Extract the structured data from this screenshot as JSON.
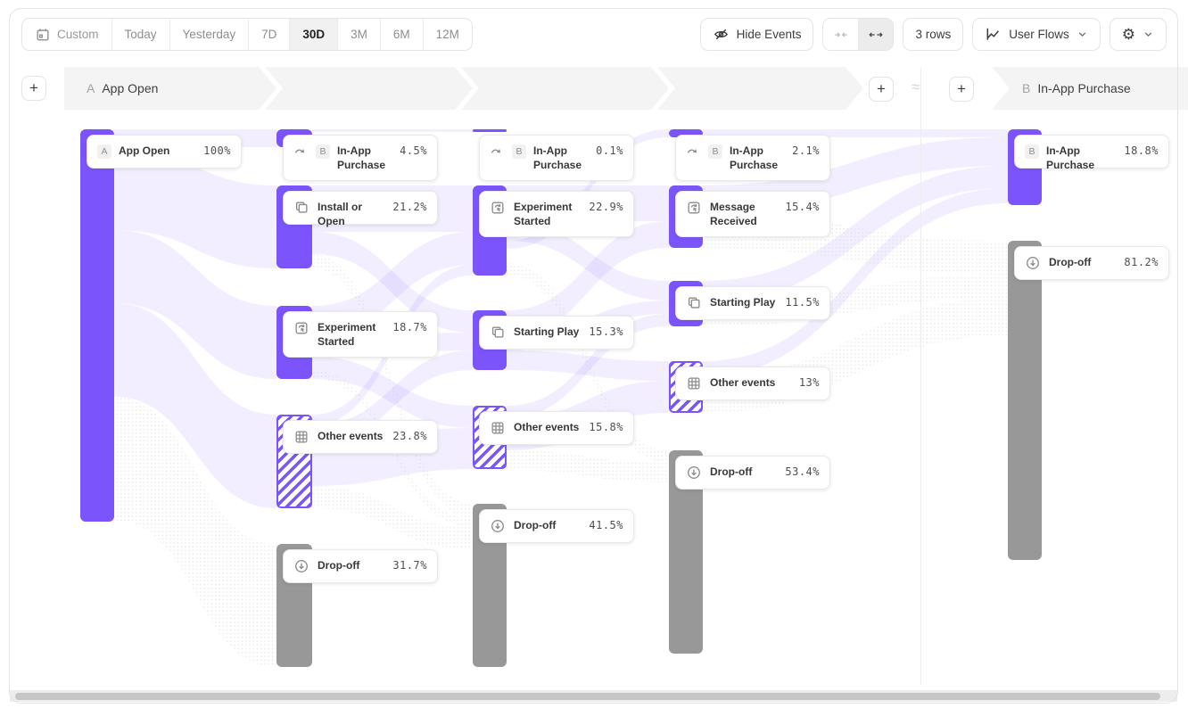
{
  "toolbar": {
    "date_ranges": [
      {
        "label": "Custom"
      },
      {
        "label": "Today"
      },
      {
        "label": "Yesterday"
      },
      {
        "label": "7D"
      },
      {
        "label": "30D"
      },
      {
        "label": "3M"
      },
      {
        "label": "6M"
      },
      {
        "label": "12M"
      }
    ],
    "selected_range": "30D",
    "hide_events_label": "Hide Events",
    "rows_label": "3 rows",
    "view_label": "User Flows"
  },
  "flow_header": {
    "start_letter": "A",
    "start_title": "App Open",
    "end_letter": "B",
    "end_title": "In-App Purchase"
  },
  "chart_data": {
    "type": "sankey",
    "title": "User Flows: App Open to In-App Purchase",
    "columns": [
      {
        "name": "step-a",
        "nodes": [
          {
            "label": "App Open",
            "value": "100%",
            "kind": "anchor-a"
          }
        ]
      },
      {
        "name": "step-2",
        "nodes": [
          {
            "label": "In-App Purchase",
            "value": "4.5%",
            "kind": "anchor-b"
          },
          {
            "label": "Install or Open",
            "value": "21.2%",
            "kind": "event"
          },
          {
            "label": "Experiment Started",
            "value": "18.7%",
            "kind": "event-custom"
          },
          {
            "label": "Other events",
            "value": "23.8%",
            "kind": "other"
          },
          {
            "label": "Drop-off",
            "value": "31.7%",
            "kind": "dropoff"
          }
        ]
      },
      {
        "name": "step-3",
        "nodes": [
          {
            "label": "In-App Purchase",
            "value": "0.1%",
            "kind": "anchor-b"
          },
          {
            "label": "Experiment Started",
            "value": "22.9%",
            "kind": "event-custom"
          },
          {
            "label": "Starting Play",
            "value": "15.3%",
            "kind": "event"
          },
          {
            "label": "Other events",
            "value": "15.8%",
            "kind": "other"
          },
          {
            "label": "Drop-off",
            "value": "41.5%",
            "kind": "dropoff"
          }
        ]
      },
      {
        "name": "step-4",
        "nodes": [
          {
            "label": "In-App Purchase",
            "value": "2.1%",
            "kind": "anchor-b"
          },
          {
            "label": "Message Received",
            "value": "15.4%",
            "kind": "event-custom"
          },
          {
            "label": "Starting Play",
            "value": "11.5%",
            "kind": "event"
          },
          {
            "label": "Other events",
            "value": "13%",
            "kind": "other"
          },
          {
            "label": "Drop-off",
            "value": "53.4%",
            "kind": "dropoff"
          }
        ]
      },
      {
        "name": "step-b",
        "nodes": [
          {
            "label": "In-App Purchase",
            "value": "18.8%",
            "kind": "anchor-b-final"
          },
          {
            "label": "Drop-off",
            "value": "81.2%",
            "kind": "dropoff"
          }
        ]
      }
    ]
  },
  "colors": {
    "accent": "#7b55fb",
    "dropoff_gray": "#989898",
    "ribbon": "#7b55fb",
    "header_band": "#f4f4f4"
  }
}
